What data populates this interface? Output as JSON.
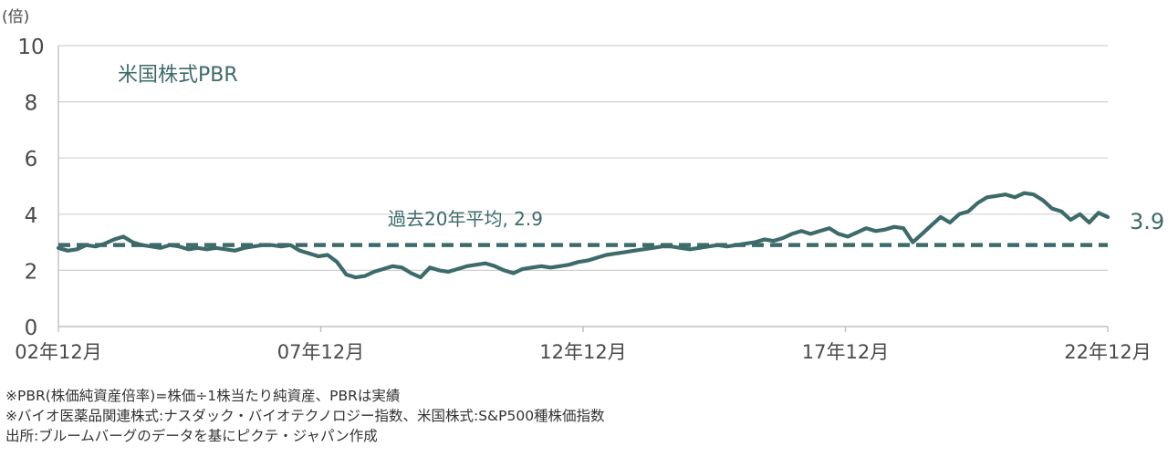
{
  "chart_data": {
    "type": "line",
    "title": "米国株式PBR",
    "unit_label": "(倍)",
    "ylim": [
      0,
      10
    ],
    "yticks": [
      "0",
      "2",
      "4",
      "6",
      "8",
      "10"
    ],
    "xtick_labels": [
      "02年12月",
      "07年12月",
      "12年12月",
      "17年12月",
      "22年12月"
    ],
    "grid": true,
    "series": [
      {
        "values": [
          2.8,
          2.7,
          2.75,
          2.9,
          2.85,
          2.95,
          3.1,
          3.2,
          3.0,
          2.9,
          2.85,
          2.8,
          2.9,
          2.85,
          2.75,
          2.8,
          2.75,
          2.8,
          2.75,
          2.7,
          2.8,
          2.85,
          2.9,
          2.9,
          2.85,
          2.9,
          2.7,
          2.6,
          2.5,
          2.55,
          2.3,
          1.85,
          1.75,
          1.8,
          1.95,
          2.05,
          2.15,
          2.1,
          1.9,
          1.75,
          2.1,
          2.0,
          1.95,
          2.05,
          2.15,
          2.2,
          2.25,
          2.15,
          2.0,
          1.9,
          2.05,
          2.1,
          2.15,
          2.1,
          2.15,
          2.2,
          2.3,
          2.35,
          2.45,
          2.55,
          2.6,
          2.65,
          2.7,
          2.75,
          2.8,
          2.85,
          2.85,
          2.8,
          2.75,
          2.8,
          2.85,
          2.9,
          2.85,
          2.9,
          2.95,
          3.0,
          3.1,
          3.05,
          3.15,
          3.3,
          3.4,
          3.3,
          3.4,
          3.5,
          3.3,
          3.2,
          3.35,
          3.5,
          3.4,
          3.45,
          3.55,
          3.5,
          3.0,
          3.3,
          3.6,
          3.9,
          3.7,
          4.0,
          4.1,
          4.4,
          4.6,
          4.65,
          4.7,
          4.6,
          4.75,
          4.7,
          4.5,
          4.2,
          4.1,
          3.8,
          4.0,
          3.7,
          4.05,
          3.9
        ]
      }
    ],
    "average": {
      "value": 2.9,
      "label": "過去20年平均, 2.9"
    },
    "end_label": "3.9"
  },
  "notes": [
    "※PBR(株価純資産倍率)=株価÷1株当たり純資産、PBRは実績",
    "※バイオ医薬品関連株式:ナスダック・バイオテクノロジー指数、米国株式:S&P500種株価指数",
    "出所:ブルームバーグのデータを基にピクテ・ジャパン作成"
  ],
  "colors": {
    "series": "#3d6b6a",
    "average": "#3d6b6a",
    "grid": "#d0d0d0",
    "axis": "#bfbfbf",
    "text": "#4a4a4a"
  }
}
